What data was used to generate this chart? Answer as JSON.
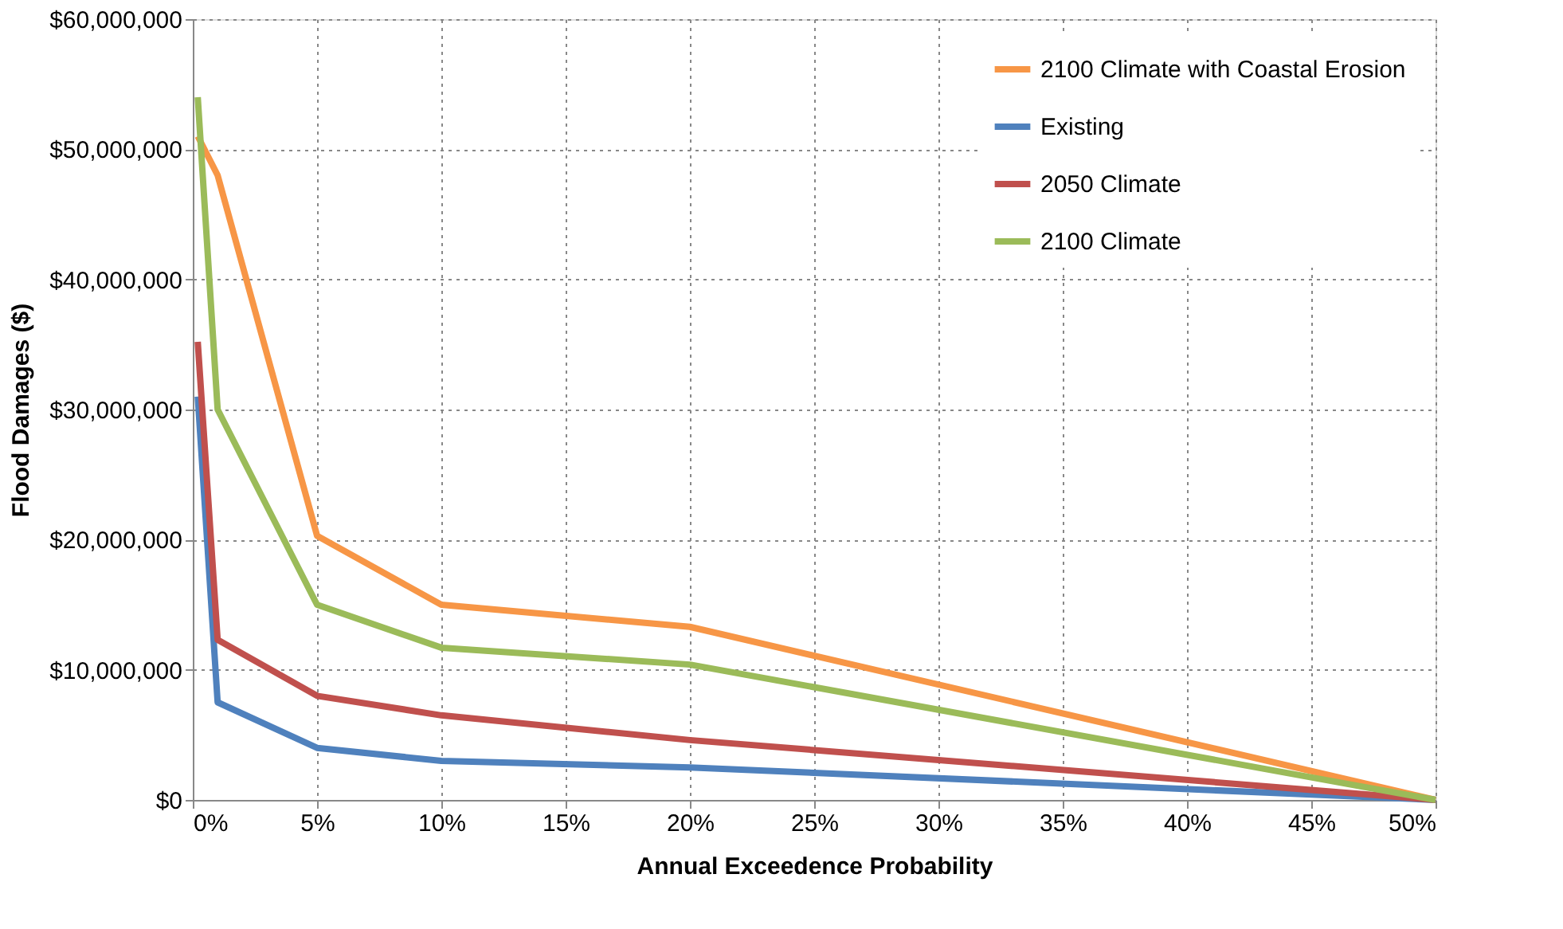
{
  "chart_data": {
    "type": "line",
    "xlabel": "Annual Exceedence Probability",
    "ylabel": "Flood Damages ($)",
    "x": [
      0.2,
      1,
      5,
      10,
      20,
      50
    ],
    "series": [
      {
        "name": "2100 Climate with Coastal Erosion",
        "color": "#f79646",
        "values": [
          51000000,
          48000000,
          20300000,
          15000000,
          13300000,
          0
        ]
      },
      {
        "name": "Existing",
        "color": "#4f81bd",
        "values": [
          31000000,
          7500000,
          4000000,
          3000000,
          2500000,
          0
        ]
      },
      {
        "name": "2050 Climate",
        "color": "#c0504d",
        "values": [
          35200000,
          12300000,
          8000000,
          6500000,
          4600000,
          0
        ]
      },
      {
        "name": "2100 Climate",
        "color": "#9bbb59",
        "values": [
          54000000,
          30000000,
          15000000,
          11700000,
          10400000,
          0
        ]
      }
    ],
    "xlim": [
      0,
      50
    ],
    "ylim": [
      0,
      60000000
    ],
    "xticks": [
      {
        "value": 0,
        "label": "0%"
      },
      {
        "value": 5,
        "label": "5%"
      },
      {
        "value": 10,
        "label": "10%"
      },
      {
        "value": 15,
        "label": "15%"
      },
      {
        "value": 20,
        "label": "20%"
      },
      {
        "value": 25,
        "label": "25%"
      },
      {
        "value": 30,
        "label": "30%"
      },
      {
        "value": 35,
        "label": "35%"
      },
      {
        "value": 40,
        "label": "40%"
      },
      {
        "value": 45,
        "label": "45%"
      },
      {
        "value": 50,
        "label": "50%"
      }
    ],
    "yticks": [
      {
        "value": 0,
        "label": "$0"
      },
      {
        "value": 10000000,
        "label": "$10,000,000"
      },
      {
        "value": 20000000,
        "label": "$20,000,000"
      },
      {
        "value": 30000000,
        "label": "$30,000,000"
      },
      {
        "value": 40000000,
        "label": "$40,000,000"
      },
      {
        "value": 50000000,
        "label": "$50,000,000"
      },
      {
        "value": 60000000,
        "label": "$60,000,000"
      }
    ],
    "grid": true,
    "legend": "top right",
    "marker": "none",
    "line_style": "solid"
  }
}
